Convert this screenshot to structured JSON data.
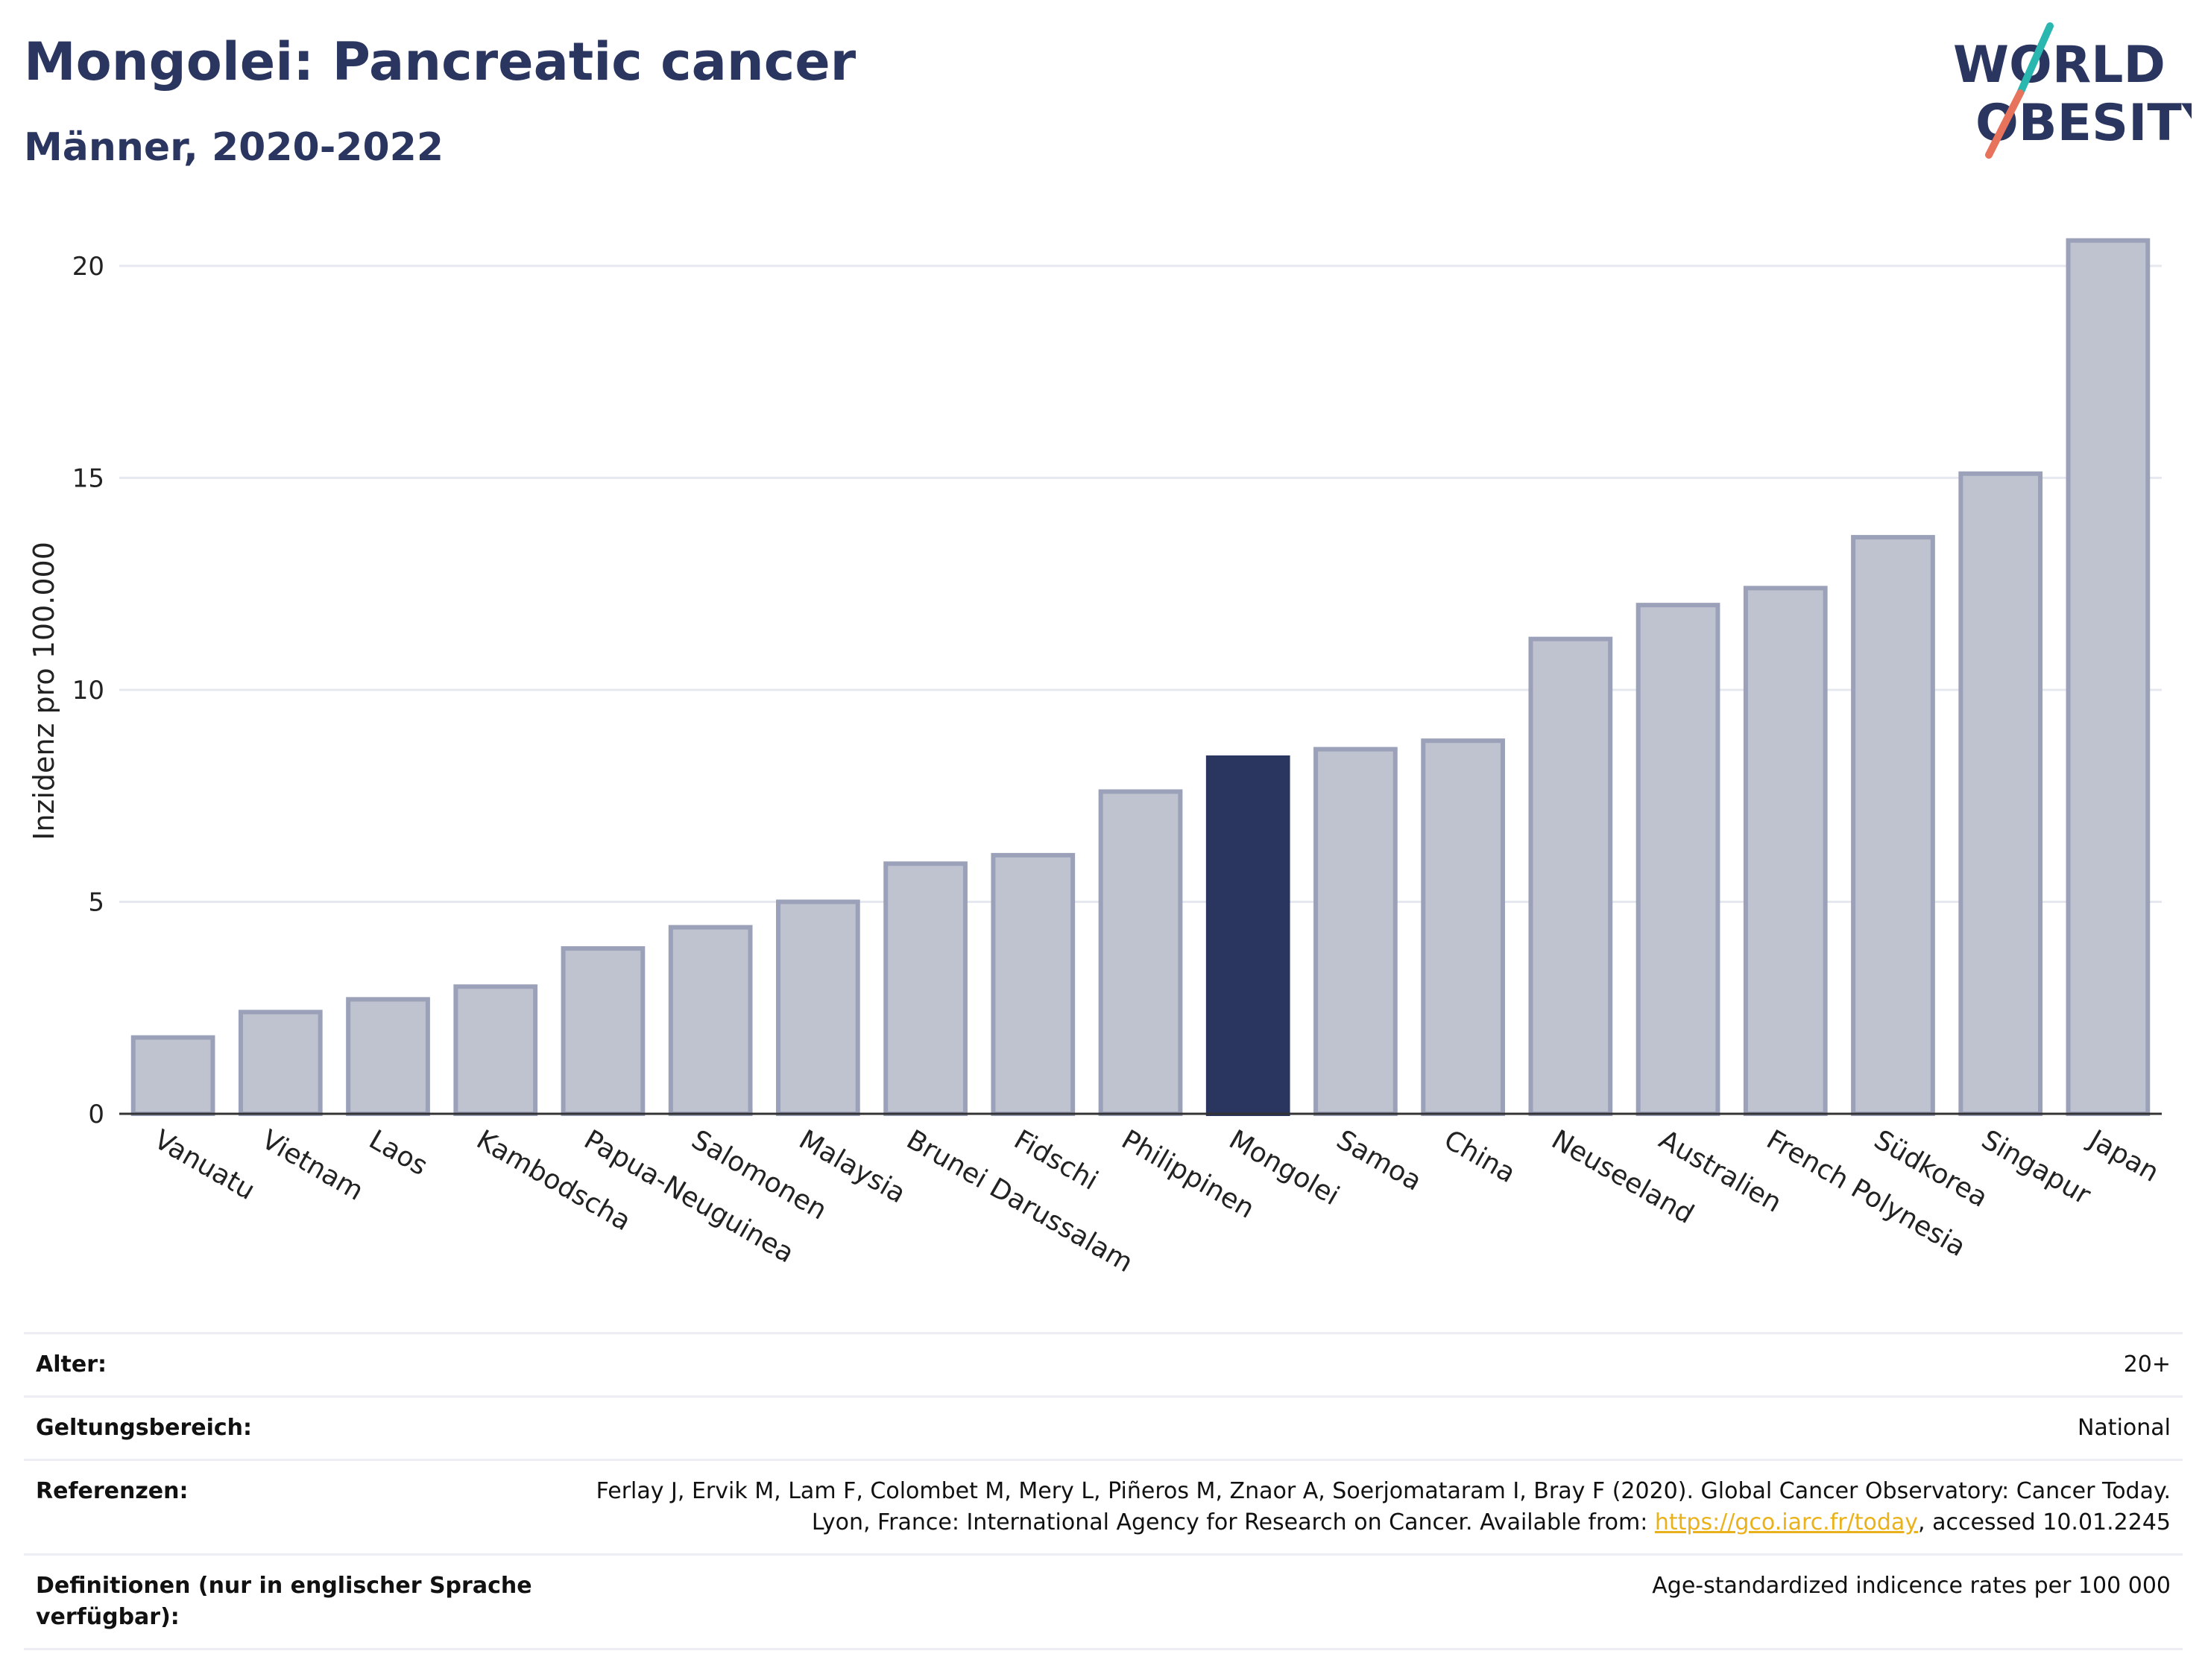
{
  "header": {
    "title": "Mongolei: Pancreatic cancer",
    "subtitle": "Männer, 2020-2022"
  },
  "logo": {
    "line1": "WORLD",
    "line2": "OBESITY"
  },
  "colors": {
    "highlight": "#2a365f",
    "bar": "#bfc3d0",
    "bar_border": "#9ba1b8",
    "accent_teal": "#2ab7b0",
    "accent_coral": "#e8735c",
    "link": "#e9b21c"
  },
  "chart_data": {
    "type": "bar",
    "ylabel": "Inzidenz pro 100.000",
    "ylim": [
      0,
      21
    ],
    "yticks": [
      0,
      5,
      10,
      15,
      20
    ],
    "grid": true,
    "highlight": "Mongolei",
    "categories": [
      "Vanuatu",
      "Vietnam",
      "Laos",
      "Kambodscha",
      "Papua-Neuguinea",
      "Salomonen",
      "Malaysia",
      "Brunei Darussalam",
      "Fidschi",
      "Philippinen",
      "Mongolei",
      "Samoa",
      "China",
      "Neuseeland",
      "Australien",
      "French Polynesia",
      "Südkorea",
      "Singapur",
      "Japan"
    ],
    "values": [
      1.8,
      2.4,
      2.7,
      3.0,
      3.9,
      4.4,
      5.0,
      5.9,
      6.1,
      7.6,
      8.4,
      8.6,
      8.8,
      11.2,
      12.0,
      12.4,
      13.6,
      15.1,
      20.6
    ]
  },
  "meta": [
    {
      "key": "Alter:",
      "value": "20+"
    },
    {
      "key": "Geltungsbereich:",
      "value": "National"
    },
    {
      "key": "Referenzen:",
      "value_before": "Ferlay J, Ervik M, Lam F, Colombet M, Mery L, Piñeros M, Znaor A, Soerjomataram I, Bray F (2020). Global Cancer Observatory: Cancer Today. Lyon, France: International Agency for Research on Cancer. Available from: ",
      "link": "https://gco.iarc.fr/today",
      "value_after": ", accessed 10.01.2245"
    },
    {
      "key": "Definitionen (nur in englischer Sprache verfügbar):",
      "value": "Age-standardized indicence rates per 100 000"
    }
  ]
}
